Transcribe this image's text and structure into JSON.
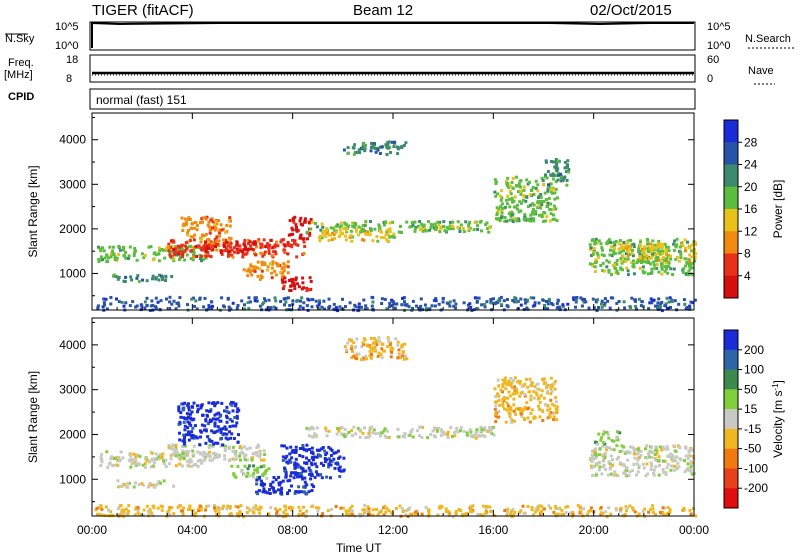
{
  "header": {
    "station": "TIGER (fitACF)",
    "beam": "Beam 12",
    "date": "02/Oct/2015"
  },
  "status_panels": {
    "nsky": {
      "label": "N.Sky",
      "tick_top": "10^5",
      "tick_bottom": "10^0"
    },
    "nsearch": {
      "label": "N.Search",
      "tick_top": "10^5",
      "tick_bottom": "10^0"
    },
    "freq": {
      "label_line1": "Freq.",
      "label_line2": "[MHz]",
      "tick_top": "18",
      "tick_bottom": "8"
    },
    "nave": {
      "label": "Nave",
      "tick_top": "60",
      "tick_bottom": "0"
    },
    "cpid": {
      "label": "CPID",
      "value": "normal (fast) 151"
    }
  },
  "chart_data": [
    {
      "type": "heatmap",
      "name": "power",
      "ylabel": "Slant Range [km]",
      "yticks": [
        1000,
        2000,
        3000,
        4000
      ],
      "ylim": [
        180,
        4600
      ],
      "xlim": [
        0,
        24
      ],
      "xticks": [
        "00:00",
        "04:00",
        "08:00",
        "12:00",
        "16:00",
        "20:00",
        "00:00"
      ],
      "colorbar": {
        "label": "Power [dB]",
        "ticks": [
          "4",
          "8",
          "12",
          "16",
          "20",
          "24",
          "28"
        ],
        "colors": [
          "#1a2bd8",
          "#2753a8",
          "#3c8a6e",
          "#5bbd3e",
          "#e8c21a",
          "#f08a10",
          "#e8301a",
          "#d60f0f"
        ]
      },
      "regions": [
        {
          "t0": 0.2,
          "t1": 4.5,
          "r0": 1300,
          "r1": 1650,
          "c": 3
        },
        {
          "t0": 0.8,
          "t1": 3.2,
          "r0": 850,
          "r1": 1000,
          "c": 2
        },
        {
          "t0": 3.0,
          "t1": 8.5,
          "r0": 1400,
          "r1": 1800,
          "c": 6
        },
        {
          "t0": 3.5,
          "t1": 5.5,
          "r0": 1700,
          "r1": 2300,
          "c": 5
        },
        {
          "t0": 4.0,
          "t1": 6.5,
          "r0": 1500,
          "r1": 1750,
          "c": 7
        },
        {
          "t0": 6.0,
          "t1": 7.8,
          "r0": 900,
          "r1": 1300,
          "c": 5
        },
        {
          "t0": 7.5,
          "t1": 8.8,
          "r0": 650,
          "r1": 950,
          "c": 7
        },
        {
          "t0": 7.8,
          "t1": 8.7,
          "r0": 1800,
          "r1": 2300,
          "c": 7
        },
        {
          "t0": 8.5,
          "t1": 16.0,
          "r0": 1950,
          "r1": 2200,
          "c": 3
        },
        {
          "t0": 9.0,
          "t1": 12.0,
          "r0": 1750,
          "r1": 2050,
          "c": 4
        },
        {
          "t0": 16.0,
          "t1": 18.5,
          "r0": 2200,
          "r1": 3200,
          "c": 3
        },
        {
          "t0": 18.0,
          "t1": 19.0,
          "r0": 3000,
          "r1": 3600,
          "c": 2
        },
        {
          "t0": 19.8,
          "t1": 24.0,
          "r0": 1000,
          "r1": 1800,
          "c": 3
        },
        {
          "t0": 21.0,
          "t1": 24.0,
          "r0": 1300,
          "r1": 1700,
          "c": 4
        },
        {
          "t0": 10.0,
          "t1": 12.5,
          "r0": 3700,
          "r1": 4000,
          "c": 2
        },
        {
          "t0": 0.0,
          "t1": 24.0,
          "r0": 200,
          "r1": 500,
          "c": 1
        }
      ]
    },
    {
      "type": "heatmap",
      "name": "velocity",
      "ylabel": "Slant Range [km]",
      "yticks": [
        1000,
        2000,
        3000,
        4000
      ],
      "ylim": [
        180,
        4600
      ],
      "xlim": [
        0,
        24
      ],
      "xlabel": "Time UT",
      "xticks": [
        "00:00",
        "04:00",
        "08:00",
        "12:00",
        "16:00",
        "20:00",
        "00:00"
      ],
      "colorbar": {
        "label": "Velocity [m s",
        "label_sup": "-1",
        "label_end": "]",
        "ticks": [
          "200",
          "100",
          "50",
          "15",
          "-15",
          "-50",
          "-100",
          "-200"
        ],
        "colors": [
          "#1a2bd8",
          "#2d66a8",
          "#3c8a4e",
          "#7ecf3a",
          "#c9c9c4",
          "#f0b820",
          "#f07a10",
          "#e8401a",
          "#e00f0f"
        ]
      },
      "regions": [
        {
          "t0": 0.2,
          "t1": 4.5,
          "r0": 1300,
          "r1": 1650,
          "c": 4
        },
        {
          "t0": 0.8,
          "t1": 3.2,
          "r0": 850,
          "r1": 1000,
          "c": 4
        },
        {
          "t0": 3.0,
          "t1": 7.0,
          "r0": 1450,
          "r1": 1800,
          "c": 4
        },
        {
          "t0": 3.4,
          "t1": 5.8,
          "r0": 1800,
          "r1": 2750,
          "c": 0
        },
        {
          "t0": 5.5,
          "t1": 7.0,
          "r0": 1050,
          "r1": 1350,
          "c": 3
        },
        {
          "t0": 6.5,
          "t1": 8.8,
          "r0": 700,
          "r1": 1100,
          "c": 0
        },
        {
          "t0": 7.5,
          "t1": 10.0,
          "r0": 1050,
          "r1": 1800,
          "c": 0
        },
        {
          "t0": 8.5,
          "t1": 16.0,
          "r0": 1950,
          "r1": 2200,
          "c": 4
        },
        {
          "t0": 16.0,
          "t1": 18.5,
          "r0": 2300,
          "r1": 3300,
          "c": 5
        },
        {
          "t0": 19.8,
          "t1": 24.0,
          "r0": 1100,
          "r1": 1800,
          "c": 4
        },
        {
          "t0": 20.0,
          "t1": 21.0,
          "r0": 1800,
          "r1": 2100,
          "c": 3
        },
        {
          "t0": 10.0,
          "t1": 12.5,
          "r0": 3700,
          "r1": 4200,
          "c": 5
        },
        {
          "t0": 0.0,
          "t1": 24.0,
          "r0": 200,
          "r1": 450,
          "c": 5
        }
      ]
    }
  ]
}
